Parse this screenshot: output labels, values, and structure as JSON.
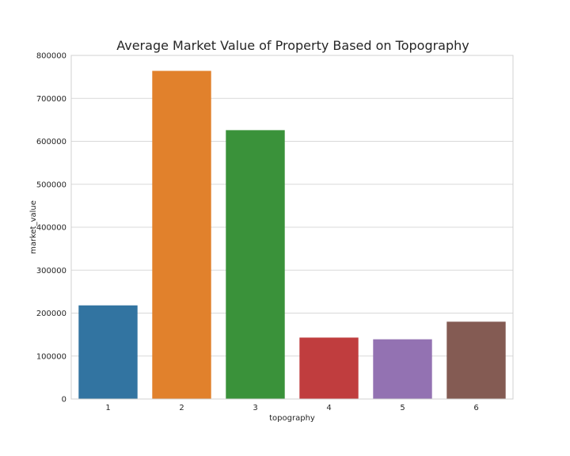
{
  "chart_data": {
    "type": "bar",
    "title": "Average Market Value of Property Based on Topography",
    "xlabel": "topography",
    "ylabel": "market_value",
    "categories": [
      "1",
      "2",
      "3",
      "4",
      "5",
      "6"
    ],
    "values": [
      218000,
      764000,
      626000,
      143000,
      139000,
      180000
    ],
    "colors": [
      "#3274a1",
      "#e1812c",
      "#3a923a",
      "#c03d3e",
      "#9372b2",
      "#845b53"
    ],
    "ylim": [
      0,
      800000
    ],
    "yticks": [
      "0",
      "100000",
      "200000",
      "300000",
      "400000",
      "500000",
      "600000",
      "700000",
      "800000"
    ],
    "grid": true,
    "legend": "none"
  }
}
